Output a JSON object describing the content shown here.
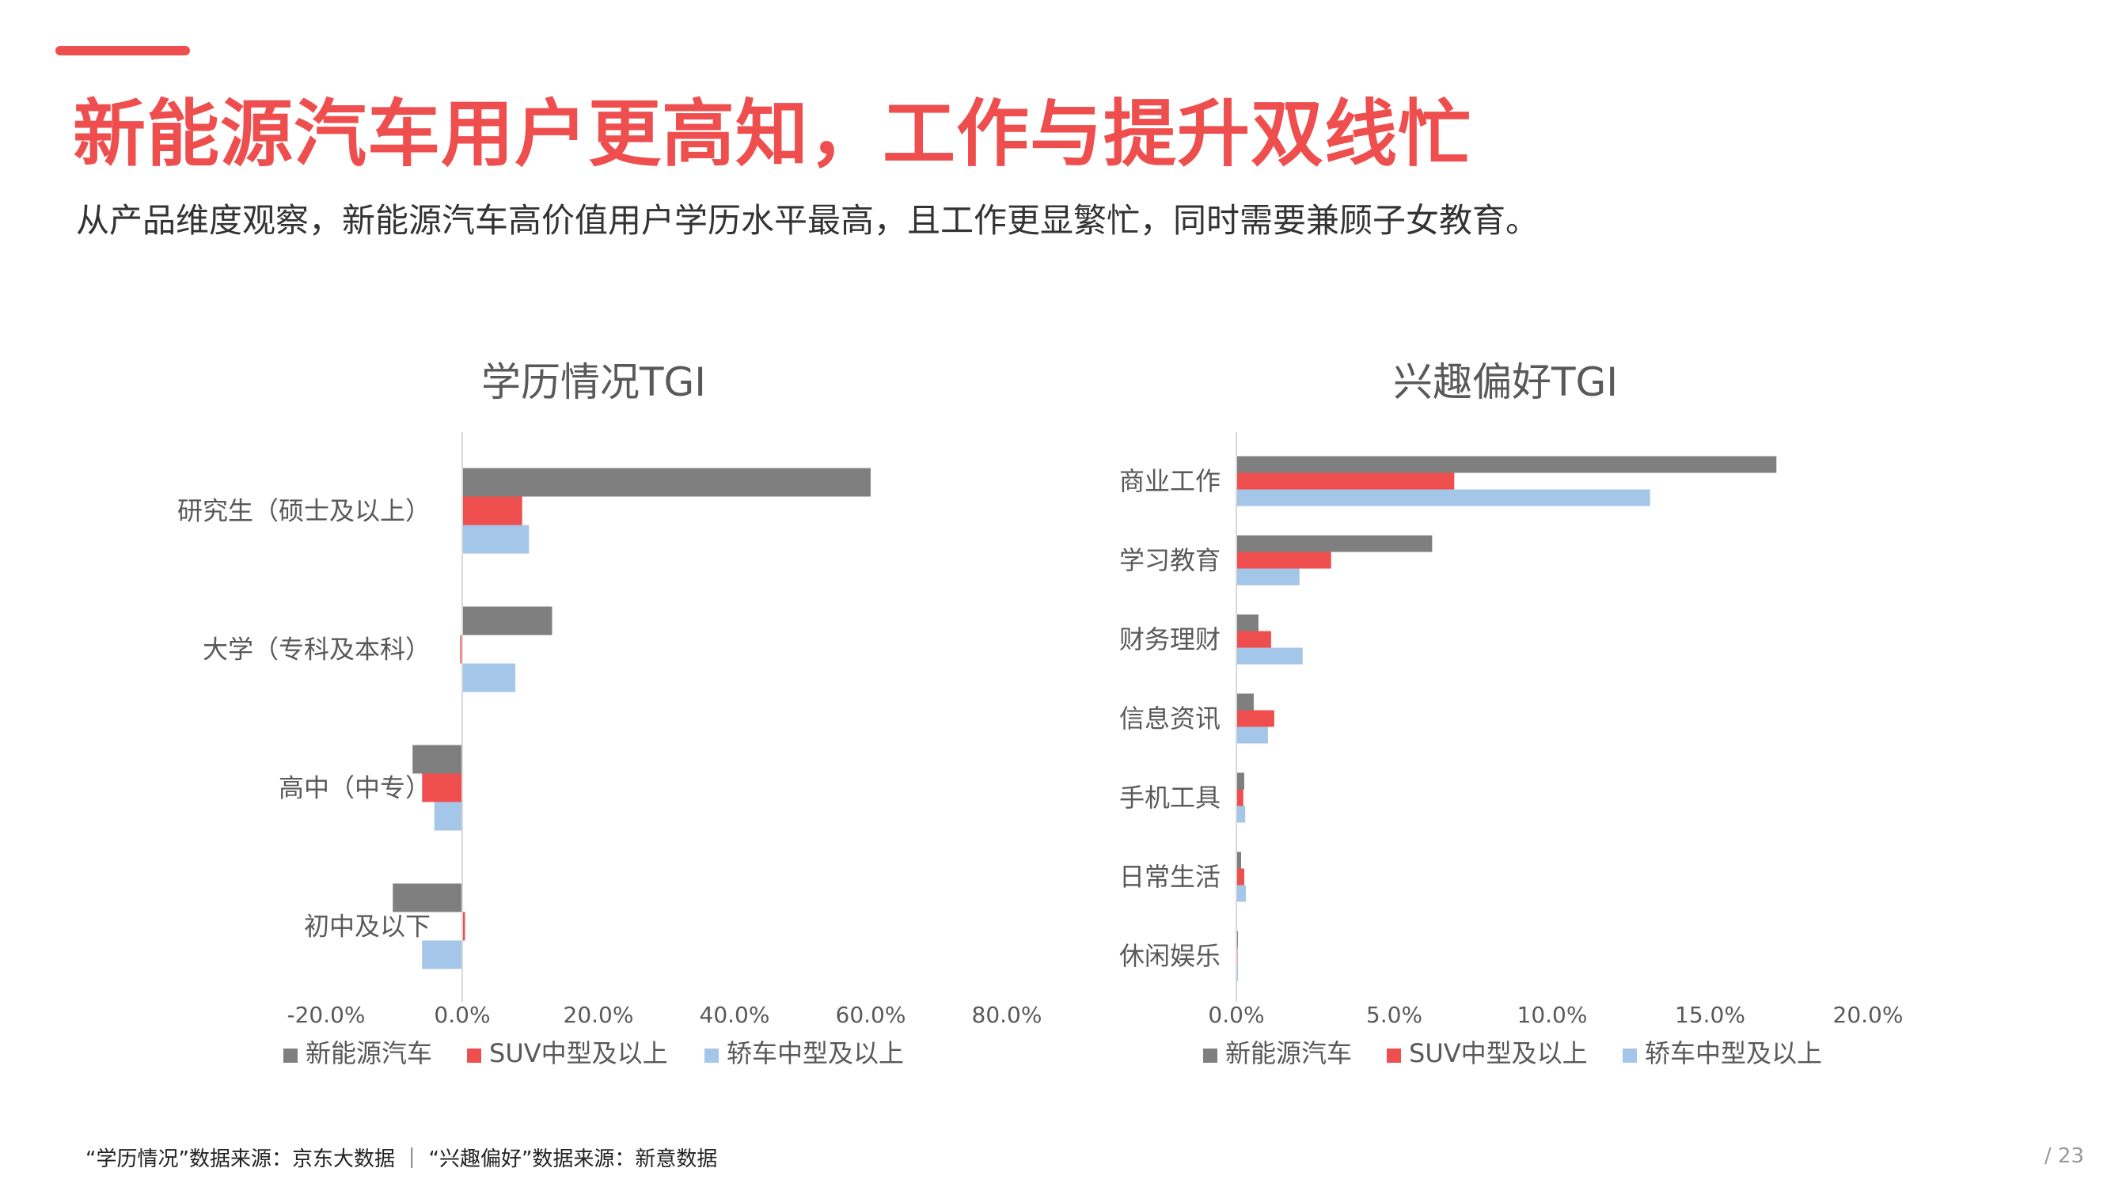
{
  "header": {
    "title": "新能源汽车用户更高知，工作与提升双线忙",
    "subtitle": "从产品维度观察，新能源汽车高价值用户学历水平最高，且工作更显繁忙，同时需要兼顾子女教育。"
  },
  "footer": {
    "source": "“学历情况”数据来源：京东大数据 ｜ “兴趣偏好”数据来源：新意数据",
    "page": "/ 23"
  },
  "colors": {
    "accent": "#EF4E4E",
    "series_gray": "#7F7F7F",
    "series_red": "#EF4E4E",
    "series_blue": "#A4C6E8"
  },
  "chart_data": [
    {
      "type": "bar",
      "orientation": "horizontal",
      "title": "学历情况TGI",
      "categories": [
        "研究生（硕士及以上）",
        "大学（专科及本科）",
        "高中（中专）",
        "初中及以下"
      ],
      "series": [
        {
          "name": "新能源汽车",
          "color": "#7F7F7F",
          "values": [
            60.0,
            13.2,
            -7.3,
            -10.2
          ]
        },
        {
          "name": "SUV中型及以上",
          "color": "#EF4E4E",
          "values": [
            8.8,
            -0.3,
            -5.9,
            0.4
          ]
        },
        {
          "name": "轿车中型及以上",
          "color": "#A4C6E8",
          "values": [
            9.8,
            7.8,
            -4.1,
            -5.9
          ]
        }
      ],
      "xlim": [
        -20,
        80
      ],
      "ticks": [
        -20,
        0,
        20,
        40,
        60,
        80
      ],
      "tick_labels": [
        "-20.0%",
        "0.0%",
        "20.0%",
        "40.0%",
        "60.0%",
        "80.0%"
      ],
      "grid": false,
      "legend": "bottom"
    },
    {
      "type": "bar",
      "orientation": "horizontal",
      "title": "兴趣偏好TGI",
      "categories": [
        "商业工作",
        "学习教育",
        "财务理财",
        "信息资讯",
        "手机工具",
        "日常生活",
        "休闲娱乐"
      ],
      "series": [
        {
          "name": "新能源汽车",
          "color": "#7F7F7F",
          "values": [
            17.1,
            6.2,
            0.7,
            0.55,
            0.25,
            0.15,
            0.05
          ]
        },
        {
          "name": "SUV中型及以上",
          "color": "#EF4E4E",
          "values": [
            6.9,
            3.0,
            1.1,
            1.2,
            0.22,
            0.25,
            0.0
          ]
        },
        {
          "name": "轿车中型及以上",
          "color": "#A4C6E8",
          "values": [
            13.1,
            2.0,
            2.1,
            1.0,
            0.28,
            0.3,
            0.05
          ]
        }
      ],
      "xlim": [
        0,
        20
      ],
      "ticks": [
        0,
        5,
        10,
        15,
        20
      ],
      "tick_labels": [
        "0.0%",
        "5.0%",
        "10.0%",
        "15.0%",
        "20.0%"
      ],
      "grid": false,
      "legend": "bottom"
    }
  ]
}
